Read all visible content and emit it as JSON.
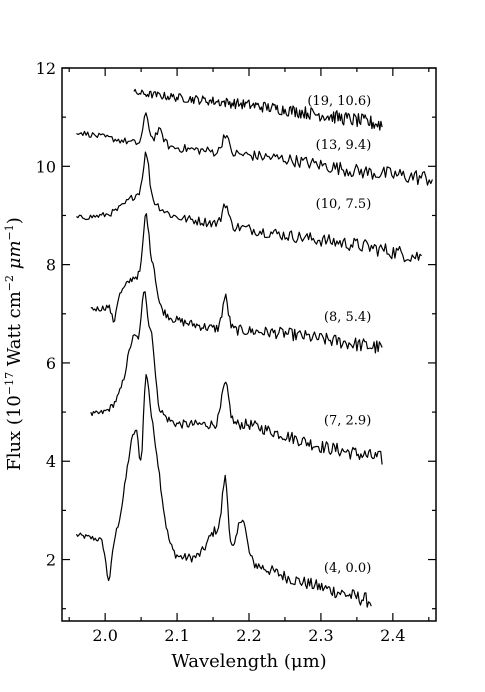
{
  "chart_data": {
    "type": "line",
    "xlabel": "Wavelength (μm)",
    "ylabel_parts": {
      "pre": "Flux (10",
      "exp1": "−17",
      "mid": " Watt cm",
      "exp2": "−2",
      "unit": " μm",
      "exp3": "−1",
      "post": ")"
    },
    "xlim": [
      1.94,
      2.46
    ],
    "ylim": [
      0.75,
      12.0
    ],
    "x_ticks": [
      2.0,
      2.1,
      2.2,
      2.3,
      2.4
    ],
    "x_tick_labels": [
      "2.0",
      "2.1",
      "2.2",
      "2.3",
      "2.4"
    ],
    "y_ticks": [
      2,
      4,
      6,
      8,
      10,
      12
    ],
    "y_tick_labels": [
      "2",
      "4",
      "6",
      "8",
      "10",
      "12"
    ],
    "grid": false,
    "series": [
      {
        "name": "(4, 0.0)",
        "x_range": [
          1.96,
          2.37
        ],
        "baseline": [
          [
            1.96,
            2.5
          ],
          [
            2.03,
            2.3
          ],
          [
            2.1,
            2.05
          ],
          [
            2.2,
            1.95
          ],
          [
            2.26,
            1.6
          ],
          [
            2.37,
            1.15
          ]
        ],
        "lines": [
          [
            2.005,
            -0.8,
            0.004
          ],
          [
            2.04,
            2.05,
            0.012
          ],
          [
            2.065,
            2.3,
            0.012
          ],
          [
            2.057,
            1.0,
            0.004
          ],
          [
            2.05,
            -0.9,
            0.003
          ],
          [
            2.167,
            1.3,
            0.004
          ],
          [
            2.155,
            0.6,
            0.012
          ],
          [
            2.19,
            0.9,
            0.006
          ]
        ],
        "label_x": 2.37,
        "label_y": 1.75
      },
      {
        "name": "(7, 2.9)",
        "x_range": [
          1.98,
          2.385
        ],
        "baseline": [
          [
            1.98,
            4.95
          ],
          [
            2.03,
            5.0
          ],
          [
            2.1,
            4.75
          ],
          [
            2.2,
            4.75
          ],
          [
            2.3,
            4.3
          ],
          [
            2.385,
            4.05
          ]
        ],
        "lines": [
          [
            2.045,
            1.0,
            0.018
          ],
          [
            2.055,
            1.6,
            0.004
          ],
          [
            2.065,
            1.1,
            0.004
          ],
          [
            2.04,
            0.6,
            0.008
          ],
          [
            2.167,
            0.8,
            0.005
          ]
        ],
        "label_x": 2.37,
        "label_y": 4.75
      },
      {
        "name": "(8, 5.4)",
        "x_range": [
          1.98,
          2.385
        ],
        "baseline": [
          [
            1.98,
            7.1
          ],
          [
            2.05,
            7.0
          ],
          [
            2.15,
            6.7
          ],
          [
            2.25,
            6.6
          ],
          [
            2.385,
            6.3
          ]
        ],
        "lines": [
          [
            2.045,
            0.75,
            0.02
          ],
          [
            2.057,
            1.4,
            0.004
          ],
          [
            2.067,
            0.6,
            0.004
          ],
          [
            2.167,
            0.65,
            0.004
          ],
          [
            2.012,
            -0.4,
            0.003
          ]
        ],
        "label_x": 2.37,
        "label_y": 6.85
      },
      {
        "name": "(10, 7.5)",
        "x_range": [
          1.96,
          2.44
        ],
        "baseline": [
          [
            1.96,
            8.95
          ],
          [
            2.05,
            9.05
          ],
          [
            2.15,
            8.85
          ],
          [
            2.25,
            8.6
          ],
          [
            2.35,
            8.4
          ],
          [
            2.44,
            8.15
          ]
        ],
        "lines": [
          [
            2.05,
            0.4,
            0.02
          ],
          [
            2.057,
            0.85,
            0.004
          ],
          [
            2.167,
            0.45,
            0.004
          ]
        ],
        "label_x": 2.37,
        "label_y": 9.15
      },
      {
        "name": "(13, 9.4)",
        "x_range": [
          1.96,
          2.455
        ],
        "baseline": [
          [
            1.96,
            10.7
          ],
          [
            2.05,
            10.45
          ],
          [
            2.15,
            10.3
          ],
          [
            2.25,
            10.15
          ],
          [
            2.35,
            9.9
          ],
          [
            2.455,
            9.75
          ]
        ],
        "lines": [
          [
            2.057,
            0.6,
            0.004
          ],
          [
            2.075,
            0.3,
            0.006
          ],
          [
            2.167,
            0.4,
            0.004
          ]
        ],
        "label_x": 2.37,
        "label_y": 10.35
      },
      {
        "name": "(19, 10.6)",
        "x_range": [
          2.04,
          2.385
        ],
        "baseline": [
          [
            2.04,
            11.5
          ],
          [
            2.1,
            11.4
          ],
          [
            2.2,
            11.25
          ],
          [
            2.3,
            11.05
          ],
          [
            2.385,
            10.85
          ]
        ],
        "lines": [],
        "label_x": 2.37,
        "label_y": 11.25
      }
    ]
  }
}
